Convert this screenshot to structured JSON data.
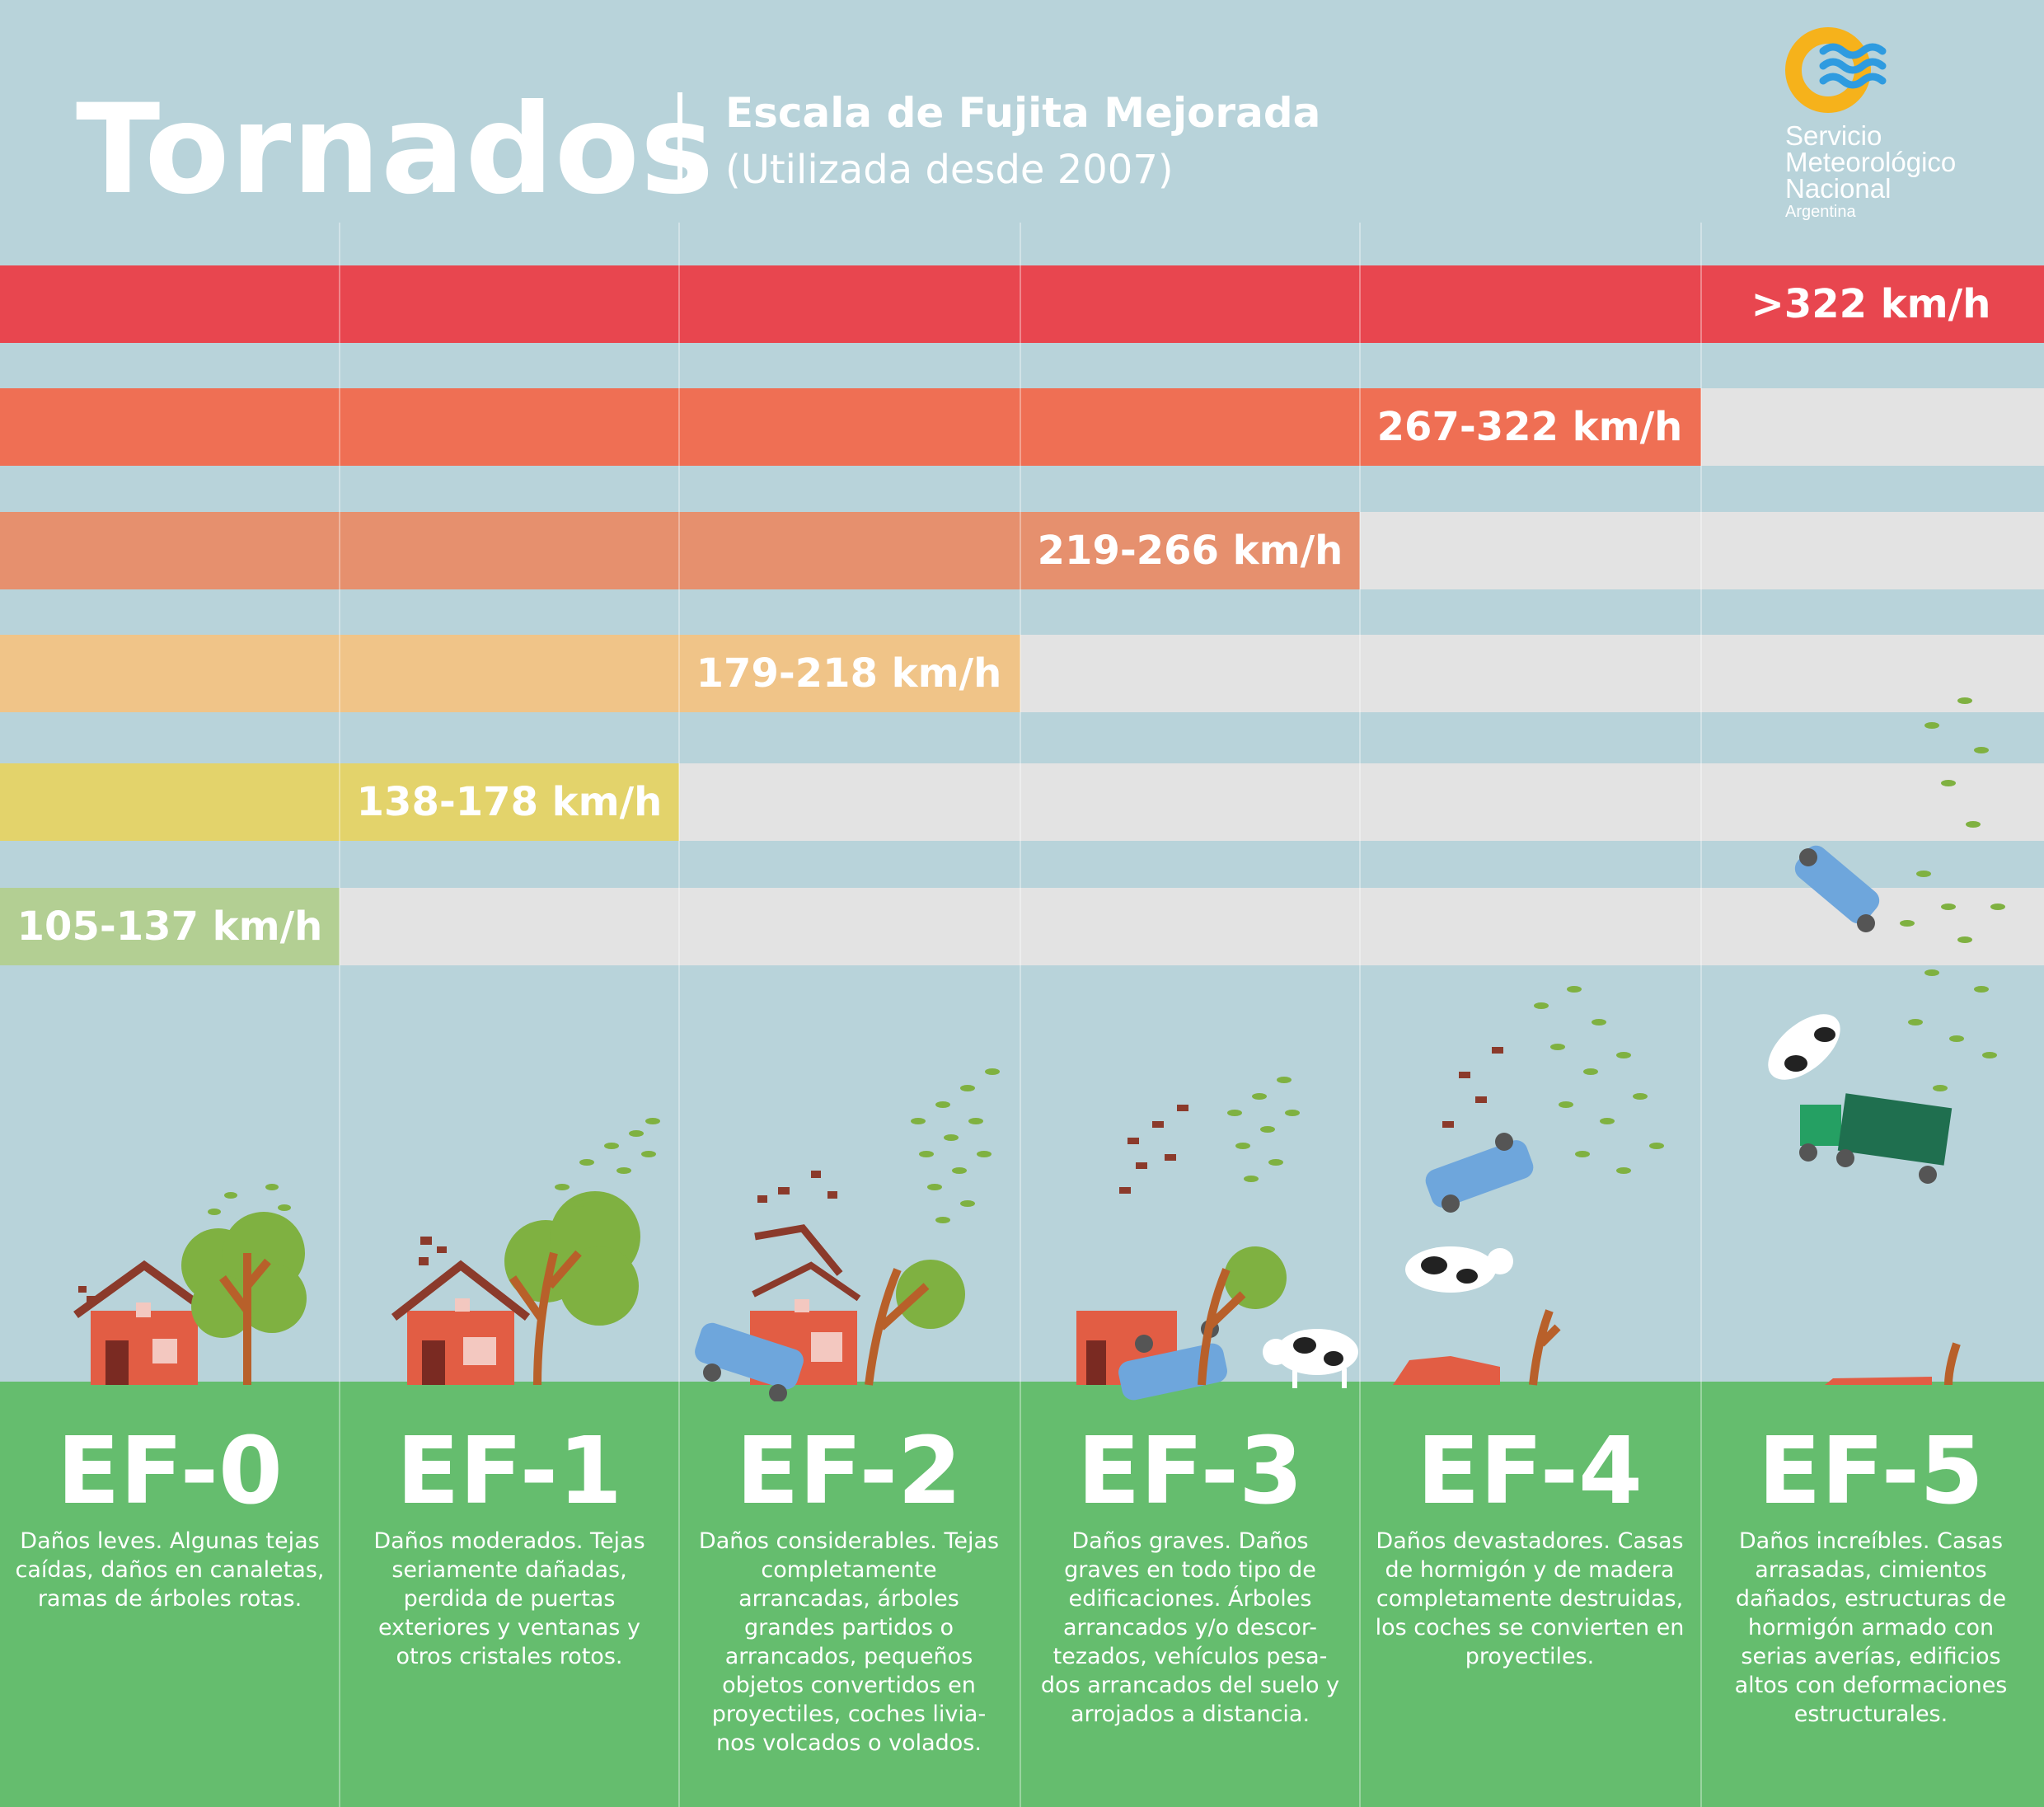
{
  "header": {
    "title": "Tornados",
    "subtitle": "Escala de Fujita Mejorada",
    "subtitle_note": "(Utilizada desde 2007)"
  },
  "logo": {
    "line1": "Servicio",
    "line2": "Meteorológico",
    "line3": "Nacional",
    "line4": "Argentina"
  },
  "colors": {
    "background": "#b8d3da",
    "ground": "#65bd6e",
    "empty_bar": "#e3e3e3",
    "ef5": "#e8464f",
    "ef4": "#ef6f54",
    "ef3": "#e6906e",
    "ef2": "#f0c488",
    "ef1": "#e3d36b",
    "ef0": "#b3cf93"
  },
  "wind_bars": [
    {
      "level": "EF-5",
      "label": ">322 km/h",
      "columns_filled": 6
    },
    {
      "level": "EF-4",
      "label": "267-322 km/h",
      "columns_filled": 5
    },
    {
      "level": "EF-3",
      "label": "219-266 km/h",
      "columns_filled": 4
    },
    {
      "level": "EF-2",
      "label": "179-218 km/h",
      "columns_filled": 3
    },
    {
      "level": "EF-1",
      "label": "138-178 km/h",
      "columns_filled": 2
    },
    {
      "level": "EF-0",
      "label": "105-137 km/h",
      "columns_filled": 1
    }
  ],
  "categories": [
    {
      "name": "EF-0",
      "description": "Daños leves. Algunas tejas caídas, daños en canaletas, ramas de árboles rotas."
    },
    {
      "name": "EF-1",
      "description": "Daños moderados. Tejas seriamente dañadas, perdida de puertas exteriores y ventanas y otros cristales rotos."
    },
    {
      "name": "EF-2",
      "description": "Daños considerables. Tejas completamente arrancadas, árboles grandes partidos o arrancados, pequeños objetos convertidos en proyectiles, coches livia-nos volcados o volados."
    },
    {
      "name": "EF-3",
      "description": "Daños graves. Daños graves en todo tipo de edificaciones. Árboles arrancados y/o descor-tezados, vehículos pesa-dos arrancados del suelo y arrojados a distancia."
    },
    {
      "name": "EF-4",
      "description": "Daños devastadores. Casas de hormigón y de madera completamente destruidas, los coches se convierten en proyectiles."
    },
    {
      "name": "EF-5",
      "description": "Daños increíbles. Casas arrasadas, cimientos dañados, estructuras de hormigón armado con serias averías, edificios altos con deformaciones estructurales."
    }
  ]
}
